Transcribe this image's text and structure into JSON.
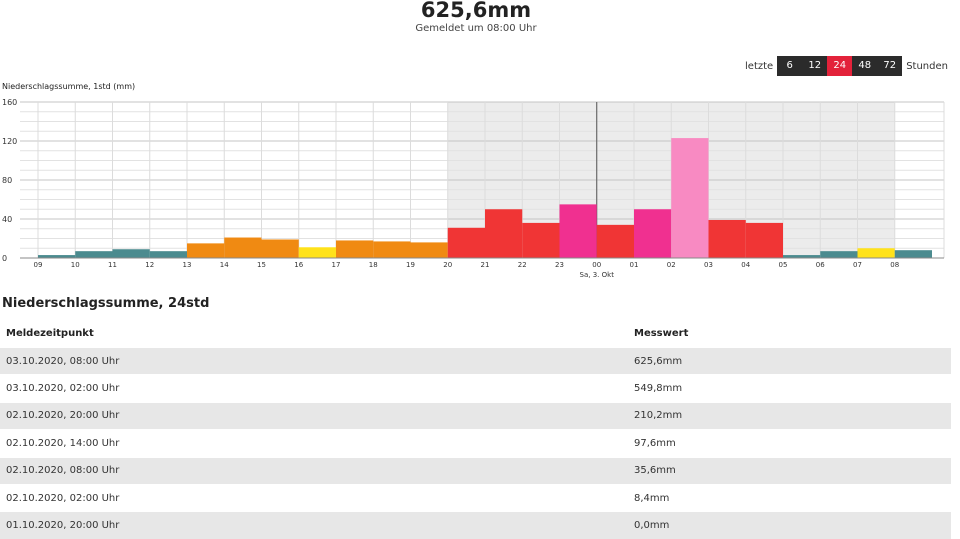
{
  "header": {
    "value": "625,6mm",
    "reported": "Gemeldet um 08:00 Uhr"
  },
  "range_selector": {
    "prefix": "letzte",
    "options": [
      "6",
      "12",
      "24",
      "48",
      "72"
    ],
    "active": "24",
    "suffix": "Stunden",
    "colors": {
      "button": "#2b2b2b",
      "active": "#e3223a"
    }
  },
  "chart_data": {
    "type": "bar",
    "title": "Niederschlagssumme, 1std (mm)",
    "ylim": [
      0,
      160
    ],
    "yticks": [
      "0",
      "40",
      "80",
      "120",
      "160"
    ],
    "xticks": [
      "09",
      "10",
      "11",
      "12",
      "13",
      "14",
      "15",
      "16",
      "17",
      "18",
      "19",
      "20",
      "21",
      "22",
      "23",
      "00",
      "01",
      "02",
      "03",
      "04",
      "05",
      "06",
      "07",
      "08"
    ],
    "day_marker": {
      "tick": "00",
      "label": "Sa, 3. Okt"
    },
    "grid": true,
    "night_shading": {
      "from": "20",
      "to": "07"
    },
    "bars": [
      {
        "value": 3,
        "color": "#4b8b8f"
      },
      {
        "value": 7,
        "color": "#4b8b8f"
      },
      {
        "value": 9,
        "color": "#4b8b8f"
      },
      {
        "value": 7,
        "color": "#4b8b8f"
      },
      {
        "value": 15,
        "color": "#f08a12"
      },
      {
        "value": 21,
        "color": "#f08a12"
      },
      {
        "value": 19,
        "color": "#f08a12"
      },
      {
        "value": 11,
        "color": "#ffe21a"
      },
      {
        "value": 18,
        "color": "#f08a12"
      },
      {
        "value": 17,
        "color": "#f08a12"
      },
      {
        "value": 16,
        "color": "#f08a12"
      },
      {
        "value": 31,
        "color": "#f03535"
      },
      {
        "value": 50,
        "color": "#f03535"
      },
      {
        "value": 36,
        "color": "#f03535"
      },
      {
        "value": 55,
        "color": "#f03090"
      },
      {
        "value": 34,
        "color": "#f03535"
      },
      {
        "value": 50,
        "color": "#f03090"
      },
      {
        "value": 123,
        "color": "#f88ac2"
      },
      {
        "value": 39,
        "color": "#f03535"
      },
      {
        "value": 36,
        "color": "#f03535"
      },
      {
        "value": 3,
        "color": "#4b8b8f"
      },
      {
        "value": 7,
        "color": "#4b8b8f"
      },
      {
        "value": 10,
        "color": "#ffe21a"
      },
      {
        "value": 8,
        "color": "#4b8b8f"
      }
    ]
  },
  "table": {
    "title": "Niederschlagssumme, 24std",
    "columns": [
      "Meldezeitpunkt",
      "Messwert"
    ],
    "rows": [
      [
        "03.10.2020, 08:00 Uhr",
        "625,6mm"
      ],
      [
        "03.10.2020, 02:00 Uhr",
        "549,8mm"
      ],
      [
        "02.10.2020, 20:00 Uhr",
        "210,2mm"
      ],
      [
        "02.10.2020, 14:00 Uhr",
        "97,6mm"
      ],
      [
        "02.10.2020, 08:00 Uhr",
        "35,6mm"
      ],
      [
        "02.10.2020, 02:00 Uhr",
        "8,4mm"
      ],
      [
        "01.10.2020, 20:00 Uhr",
        "0,0mm"
      ]
    ]
  }
}
